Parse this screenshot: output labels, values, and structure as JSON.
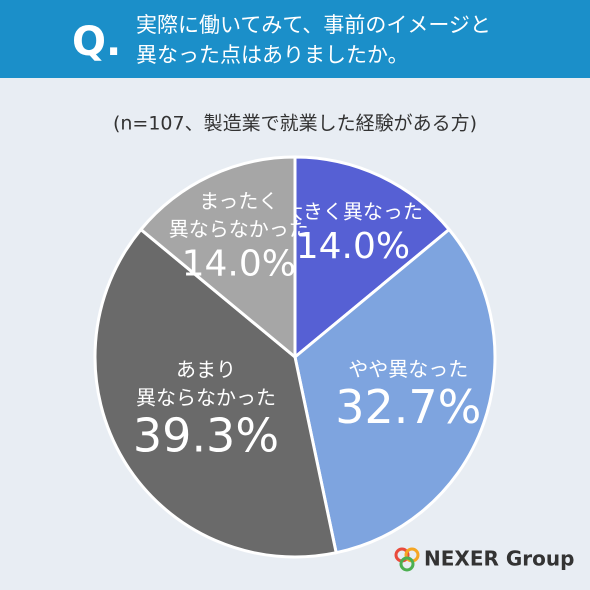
{
  "chart_data": {
    "type": "pie",
    "question_mark": "Q.",
    "title": [
      "実際に働いてみて、事前のイメージと",
      "異なった点はありましたか。"
    ],
    "subtitle": "(n=107、製造業で就業した経験がある方)",
    "categories": [
      [
        "大きく異なった"
      ],
      [
        "やや異なった"
      ],
      [
        "あまり",
        "異ならなかった"
      ],
      [
        "まったく",
        "異ならなかった"
      ]
    ],
    "values": [
      14.0,
      32.7,
      39.3,
      14.0
    ],
    "value_labels": [
      "14.0%",
      "32.7%",
      "39.3%",
      "14.0%"
    ],
    "colors": [
      "#5660d4",
      "#7ea4df",
      "#6a6a6a",
      "#a6a6a6"
    ],
    "logo": "NEXER Group"
  }
}
